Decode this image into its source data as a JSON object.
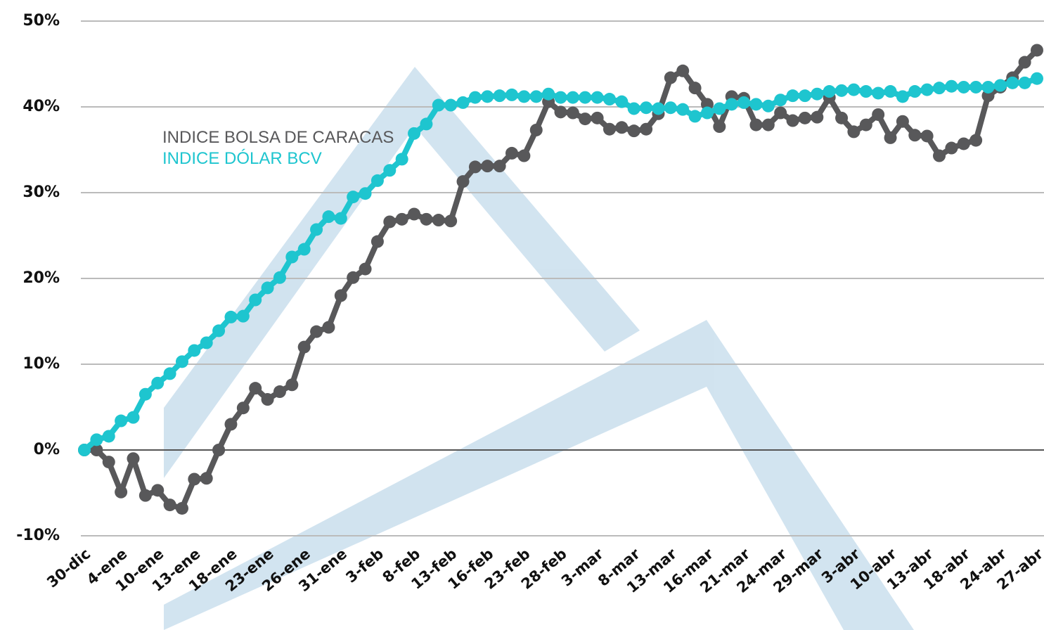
{
  "chart_data": {
    "type": "line",
    "categories": [
      "30-dic",
      null,
      null,
      "4-ene",
      null,
      null,
      "10-ene",
      null,
      null,
      "13-ene",
      null,
      null,
      "18-ene",
      null,
      null,
      "23-ene",
      null,
      null,
      "26-ene",
      null,
      null,
      "31-ene",
      null,
      null,
      "3-feb",
      null,
      null,
      "8-feb",
      null,
      null,
      "13-feb",
      null,
      null,
      "16-feb",
      null,
      null,
      "23-feb",
      null,
      null,
      "28-feb",
      null,
      null,
      "3-mar",
      null,
      null,
      "8-mar",
      null,
      null,
      "13-mar",
      null,
      null,
      "16-mar",
      null,
      null,
      "21-mar",
      null,
      null,
      "24-mar",
      null,
      null,
      "29-mar",
      null,
      null,
      "3-abr",
      null,
      null,
      "10-abr",
      null,
      null,
      "13-abr",
      null,
      null,
      "18-abr",
      null,
      null,
      "24-abr",
      null,
      null,
      "27-abr"
    ],
    "series": [
      {
        "name": "INDICE BOLSA DE CARACAS",
        "color": "#58585a",
        "values": [
          0,
          0,
          -1.4,
          -4.9,
          -1.0,
          -5.3,
          -4.7,
          -6.4,
          -6.8,
          -3.4,
          -3.3,
          0,
          3.0,
          4.9,
          7.2,
          5.9,
          6.8,
          7.6,
          12.0,
          13.8,
          14.3,
          18.0,
          20.1,
          21.1,
          24.3,
          26.6,
          26.9,
          27.5,
          26.9,
          26.8,
          26.7,
          31.3,
          33.0,
          33.1,
          33.1,
          34.6,
          34.3,
          37.3,
          40.6,
          39.4,
          39.3,
          38.6,
          38.7,
          37.4,
          37.6,
          37.2,
          37.4,
          39.2,
          43.4,
          44.2,
          42.2,
          40.3,
          37.7,
          41.2,
          41.0,
          37.9,
          37.9,
          39.3,
          38.4,
          38.7,
          38.8,
          41.1,
          38.7,
          37.1,
          37.9,
          39.1,
          36.4,
          38.3,
          36.7,
          36.6,
          34.3,
          35.2,
          35.7,
          36.1,
          41.3,
          42.3,
          43.4,
          45.2,
          46.6
        ]
      },
      {
        "name": "INDICE DÓLAR BCV",
        "color": "#1ec5cf",
        "values": [
          0,
          1.2,
          1.6,
          3.4,
          3.8,
          6.5,
          7.8,
          8.9,
          10.3,
          11.6,
          12.5,
          13.9,
          15.5,
          15.6,
          17.5,
          18.9,
          20.1,
          22.5,
          23.4,
          25.7,
          27.2,
          27.0,
          29.5,
          29.9,
          31.4,
          32.6,
          33.9,
          36.9,
          38.0,
          40.2,
          40.2,
          40.5,
          41.1,
          41.2,
          41.3,
          41.4,
          41.2,
          41.2,
          41.5,
          41.1,
          41.1,
          41.1,
          41.1,
          40.9,
          40.6,
          39.8,
          39.9,
          39.8,
          39.9,
          39.7,
          38.9,
          39.3,
          39.8,
          40.3,
          40.5,
          40.3,
          40.1,
          40.8,
          41.3,
          41.3,
          41.5,
          41.8,
          41.9,
          42.0,
          41.8,
          41.6,
          41.8,
          41.2,
          41.8,
          42.0,
          42.2,
          42.4,
          42.3,
          42.3,
          42.3,
          42.5,
          42.8,
          42.8,
          43.3
        ]
      }
    ],
    "ylim": [
      -10,
      50
    ],
    "yticks": [
      {
        "value": -10,
        "label": "-10%"
      },
      {
        "value": 0,
        "label": "0%"
      },
      {
        "value": 10,
        "label": "10%"
      },
      {
        "value": 20,
        "label": "20%"
      },
      {
        "value": 30,
        "label": "30%"
      },
      {
        "value": 40,
        "label": "40%"
      },
      {
        "value": 50,
        "label": "50%"
      }
    ],
    "grid": true
  }
}
